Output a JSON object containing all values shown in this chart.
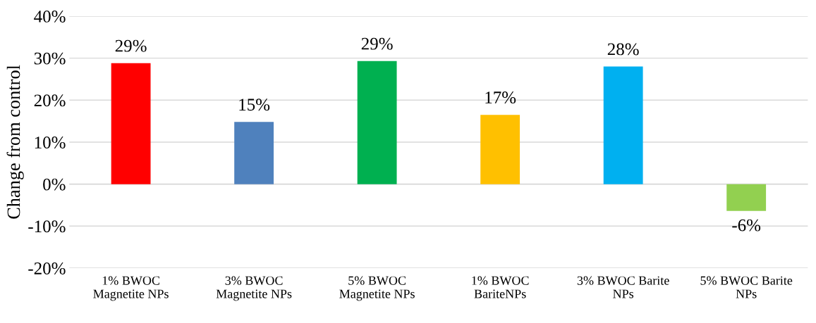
{
  "chart_data": {
    "type": "bar",
    "ylabel": "Change from control",
    "categories": [
      "1% BWOC\nMagnetite NPs",
      "3% BWOC\nMagnetite NPs",
      "5% BWOC\nMagnetite NPs",
      "1% BWOC\nBariteNPs",
      "3% BWOC Barite\nNPs",
      "5% BWOC Barite\nNPs"
    ],
    "values": [
      28.8,
      14.8,
      29.3,
      16.5,
      28.0,
      -6.4
    ],
    "colors": [
      "#ff0000",
      "#4f81bd",
      "#00b050",
      "#ffc000",
      "#00b0f0",
      "#92d050"
    ],
    "value_labels": [
      "29%",
      "15%",
      "29%",
      "17%",
      "28%",
      "-6%"
    ],
    "ylim": [
      -20,
      40
    ],
    "yticks": [
      {
        "value": -20,
        "label": "-20%"
      },
      {
        "value": -10,
        "label": "-10%"
      },
      {
        "value": 0,
        "label": "0%"
      },
      {
        "value": 10,
        "label": "10%"
      },
      {
        "value": 20,
        "label": "20%"
      },
      {
        "value": 30,
        "label": "30%"
      },
      {
        "value": 40,
        "label": "40%"
      }
    ],
    "grid": "y"
  }
}
